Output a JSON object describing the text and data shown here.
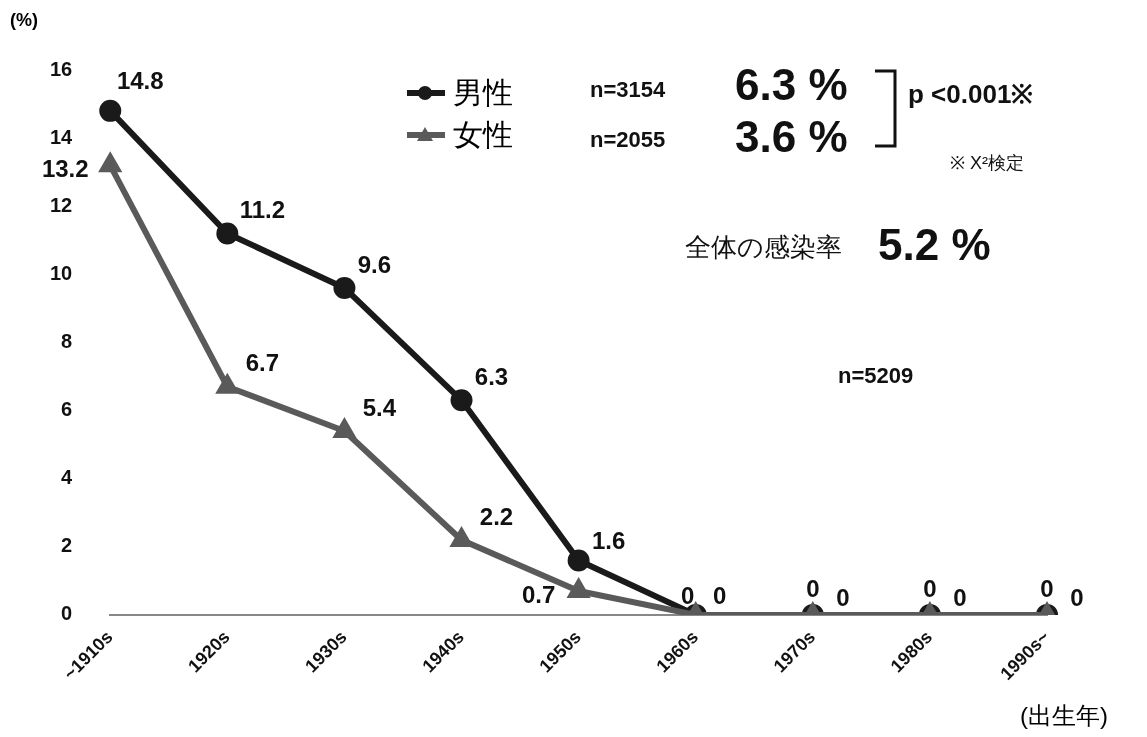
{
  "chart_data": {
    "type": "line",
    "categories": [
      "~1910s",
      "1920s",
      "1930s",
      "1940s",
      "1950s",
      "1960s",
      "1970s",
      "1980s",
      "1990s~"
    ],
    "series": [
      {
        "name": "男性",
        "color": "#1a1a1a",
        "marker": "circle",
        "values": [
          14.8,
          11.2,
          9.6,
          6.3,
          1.6,
          0,
          0,
          0,
          0
        ]
      },
      {
        "name": "女性",
        "color": "#5a5a5a",
        "marker": "triangle",
        "values": [
          13.2,
          6.7,
          5.4,
          2.2,
          0.7,
          0,
          0,
          0,
          0
        ]
      }
    ],
    "ylabel": "(%)",
    "xlabel": "(出生年)",
    "ylim": [
      0,
      16
    ],
    "yticks": [
      0,
      2,
      4,
      6,
      8,
      10,
      12,
      14,
      16
    ],
    "grid": false,
    "legend": "top",
    "data_labels": true,
    "annotations": [
      "n=3154",
      "6.3 %",
      "n=2055",
      "3.6 %",
      "p <0.001※",
      "※  X²検定",
      "全体の感染率",
      "5.2 %",
      "n=5209"
    ]
  }
}
